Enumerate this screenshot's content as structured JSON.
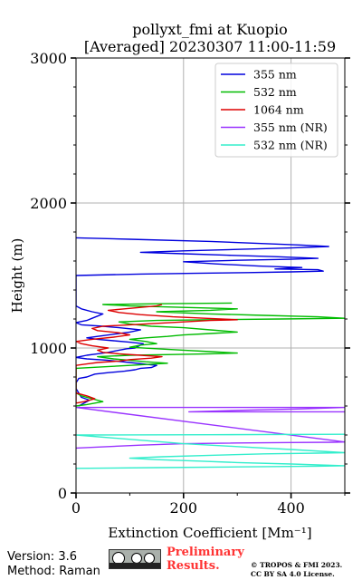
{
  "chart_data": {
    "type": "line",
    "title_line1": "pollyxt_fmi at Kuopio",
    "title_line2": "[Averaged] 20230307 11:00-11:59",
    "xlabel": "Extinction Coefficient [Mm⁻¹]",
    "ylabel": "Height (m)",
    "xlim": [
      0,
      500
    ],
    "ylim": [
      0,
      3000
    ],
    "x_ticks": [
      "0",
      "200",
      "400"
    ],
    "y_ticks": [
      "0",
      "1000",
      "2000",
      "3000"
    ],
    "grid": true,
    "legend_position": "top-right",
    "series": [
      {
        "name": "355 nm",
        "color": "#0000dd",
        "points": [
          [
            5,
            600
          ],
          [
            25,
            640
          ],
          [
            10,
            660
          ],
          [
            5,
            690
          ],
          [
            0,
            720
          ],
          [
            0,
            760
          ],
          [
            5,
            790
          ],
          [
            20,
            800
          ],
          [
            35,
            820
          ],
          [
            60,
            830
          ],
          [
            90,
            840
          ],
          [
            110,
            850
          ],
          [
            120,
            860
          ],
          [
            140,
            865
          ],
          [
            150,
            880
          ],
          [
            100,
            900
          ],
          [
            60,
            915
          ],
          [
            20,
            925
          ],
          [
            0,
            935
          ],
          [
            20,
            950
          ],
          [
            40,
            960
          ],
          [
            60,
            970
          ],
          [
            80,
            985
          ],
          [
            95,
            995
          ],
          [
            110,
            1000
          ],
          [
            115,
            1010
          ],
          [
            120,
            1020
          ],
          [
            125,
            1030
          ],
          [
            100,
            1040
          ],
          [
            70,
            1050
          ],
          [
            40,
            1060
          ],
          [
            20,
            1070
          ],
          [
            40,
            1080
          ],
          [
            70,
            1095
          ],
          [
            100,
            1110
          ],
          [
            120,
            1125
          ],
          [
            80,
            1140
          ],
          [
            50,
            1150
          ],
          [
            10,
            1160
          ],
          [
            0,
            1175
          ],
          [
            20,
            1190
          ],
          [
            30,
            1205
          ],
          [
            40,
            1220
          ],
          [
            50,
            1235
          ],
          [
            30,
            1250
          ],
          [
            10,
            1270
          ],
          [
            0,
            1290
          ],
          [
            0,
            1310
          ],
          [
            0,
            1500
          ],
          [
            120,
            1510
          ],
          [
            220,
            1515
          ],
          [
            320,
            1520
          ],
          [
            400,
            1525
          ],
          [
            460,
            1530
          ],
          [
            450,
            1540
          ],
          [
            370,
            1545
          ],
          [
            420,
            1555
          ],
          [
            340,
            1565
          ],
          [
            260,
            1580
          ],
          [
            200,
            1595
          ],
          [
            300,
            1605
          ],
          [
            400,
            1612
          ],
          [
            450,
            1618
          ],
          [
            370,
            1630
          ],
          [
            280,
            1640
          ],
          [
            200,
            1650
          ],
          [
            120,
            1660
          ],
          [
            200,
            1670
          ],
          [
            300,
            1680
          ],
          [
            400,
            1690
          ],
          [
            470,
            1700
          ],
          [
            420,
            1710
          ],
          [
            350,
            1720
          ],
          [
            250,
            1735
          ],
          [
            100,
            1750
          ],
          [
            0,
            1760
          ]
        ]
      },
      {
        "name": "532 nm",
        "color": "#00bb00",
        "points": [
          [
            0,
            600
          ],
          [
            20,
            610
          ],
          [
            50,
            630
          ],
          [
            30,
            650
          ],
          [
            10,
            670
          ],
          [
            0,
            690
          ],
          [
            0,
            860
          ],
          [
            50,
            870
          ],
          [
            100,
            880
          ],
          [
            150,
            890
          ],
          [
            170,
            895
          ],
          [
            130,
            905
          ],
          [
            100,
            915
          ],
          [
            70,
            925
          ],
          [
            40,
            940
          ],
          [
            100,
            950
          ],
          [
            180,
            955
          ],
          [
            250,
            960
          ],
          [
            300,
            965
          ],
          [
            250,
            975
          ],
          [
            200,
            985
          ],
          [
            150,
            995
          ],
          [
            100,
            1005
          ],
          [
            120,
            1020
          ],
          [
            150,
            1030
          ],
          [
            130,
            1045
          ],
          [
            100,
            1060
          ],
          [
            130,
            1070
          ],
          [
            170,
            1080
          ],
          [
            200,
            1090
          ],
          [
            250,
            1100
          ],
          [
            300,
            1110
          ],
          [
            250,
            1125
          ],
          [
            200,
            1140
          ],
          [
            140,
            1150
          ],
          [
            100,
            1165
          ],
          [
            80,
            1180
          ],
          [
            150,
            1190
          ],
          [
            250,
            1195
          ],
          [
            380,
            1200
          ],
          [
            500,
            1205
          ],
          [
            450,
            1215
          ],
          [
            350,
            1225
          ],
          [
            250,
            1235
          ],
          [
            150,
            1250
          ],
          [
            250,
            1260
          ],
          [
            300,
            1270
          ],
          [
            200,
            1280
          ],
          [
            100,
            1290
          ],
          [
            50,
            1300
          ],
          [
            150,
            1305
          ],
          [
            290,
            1310
          ]
        ]
      },
      {
        "name": "1064 nm",
        "color": "#dd0000",
        "points": [
          [
            0,
            690
          ],
          [
            20,
            670
          ],
          [
            35,
            650
          ],
          [
            15,
            630
          ],
          [
            0,
            620
          ],
          [
            0,
            880
          ],
          [
            20,
            890
          ],
          [
            40,
            900
          ],
          [
            80,
            910
          ],
          [
            100,
            920
          ],
          [
            140,
            930
          ],
          [
            160,
            940
          ],
          [
            120,
            950
          ],
          [
            80,
            960
          ],
          [
            50,
            970
          ],
          [
            40,
            985
          ],
          [
            60,
            1000
          ],
          [
            30,
            1015
          ],
          [
            10,
            1030
          ],
          [
            0,
            1045
          ],
          [
            30,
            1060
          ],
          [
            70,
            1075
          ],
          [
            100,
            1090
          ],
          [
            80,
            1105
          ],
          [
            40,
            1120
          ],
          [
            30,
            1135
          ],
          [
            50,
            1150
          ],
          [
            100,
            1160
          ],
          [
            150,
            1170
          ],
          [
            200,
            1180
          ],
          [
            250,
            1190
          ],
          [
            300,
            1195
          ],
          [
            240,
            1205
          ],
          [
            180,
            1215
          ],
          [
            120,
            1230
          ],
          [
            80,
            1245
          ],
          [
            60,
            1260
          ],
          [
            90,
            1270
          ],
          [
            120,
            1280
          ],
          [
            150,
            1290
          ],
          [
            160,
            1300
          ]
        ]
      },
      {
        "name": "355 nm (NR)",
        "color": "#9933ff",
        "points": [
          [
            0,
            310
          ],
          [
            60,
            320
          ],
          [
            120,
            330
          ],
          [
            200,
            340
          ],
          [
            300,
            345
          ],
          [
            400,
            348
          ],
          [
            480,
            350
          ],
          [
            500,
            352
          ],
          [
            0,
            590
          ],
          [
            400,
            590
          ],
          [
            500,
            590
          ],
          [
            420,
            580
          ],
          [
            300,
            570
          ],
          [
            210,
            560
          ],
          [
            350,
            560
          ],
          [
            500,
            560
          ]
        ]
      },
      {
        "name": "532 nm (NR)",
        "color": "#33eecc",
        "points": [
          [
            0,
            170
          ],
          [
            150,
            175
          ],
          [
            300,
            180
          ],
          [
            450,
            185
          ],
          [
            500,
            188
          ],
          [
            400,
            200
          ],
          [
            300,
            210
          ],
          [
            230,
            220
          ],
          [
            150,
            230
          ],
          [
            100,
            240
          ],
          [
            160,
            250
          ],
          [
            250,
            260
          ],
          [
            350,
            270
          ],
          [
            450,
            275
          ],
          [
            500,
            278
          ],
          [
            400,
            300
          ],
          [
            300,
            320
          ],
          [
            200,
            340
          ],
          [
            0,
            400
          ],
          [
            250,
            402
          ],
          [
            500,
            405
          ]
        ]
      }
    ]
  },
  "footer": {
    "version": "Version: 3.6",
    "method": "Method: Raman",
    "preliminary_line1": "Preliminary",
    "preliminary_line2": "Results.",
    "copyright_line1": "© TROPOS & FMI 2023.",
    "copyright_line2": "CC BY SA 4.0 License."
  }
}
